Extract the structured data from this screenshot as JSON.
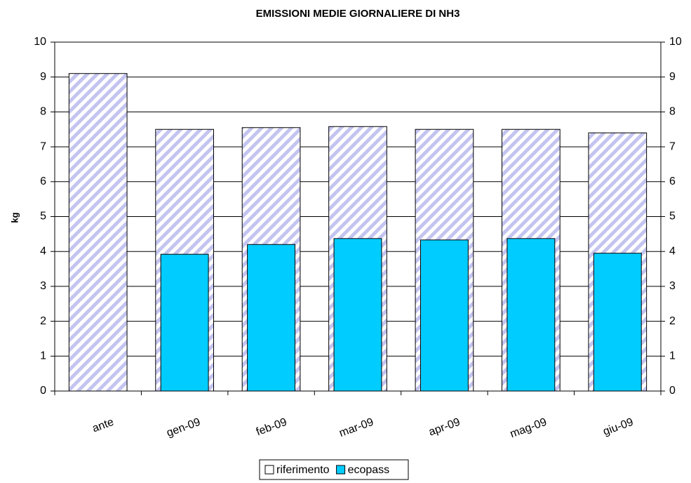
{
  "chart_data": {
    "type": "bar",
    "title": "EMISSIONI MEDIE GIORNALIERE DI NH3",
    "y_label": "kg",
    "categories": [
      "ante",
      "gen-09",
      "feb-09",
      "mar-09",
      "apr-09",
      "mag-09",
      "giu-09"
    ],
    "series": [
      {
        "name": "riferimento",
        "color": "#c4c4f0",
        "hatch": true,
        "values": [
          9.1,
          7.5,
          7.55,
          7.58,
          7.5,
          7.5,
          7.4
        ]
      },
      {
        "name": "ecopass",
        "color": "#00ccff",
        "values": [
          null,
          3.92,
          4.2,
          4.37,
          4.33,
          4.37,
          3.95
        ]
      }
    ],
    "ylim": [
      0,
      10
    ],
    "yticks": [
      0,
      1,
      2,
      3,
      4,
      5,
      6,
      7,
      8,
      9,
      10
    ],
    "y2lim": [
      0,
      10
    ],
    "y2ticks": [
      0,
      1,
      2,
      3,
      4,
      5,
      6,
      7,
      8,
      9,
      10
    ],
    "grid": true,
    "legend": "bottom"
  }
}
